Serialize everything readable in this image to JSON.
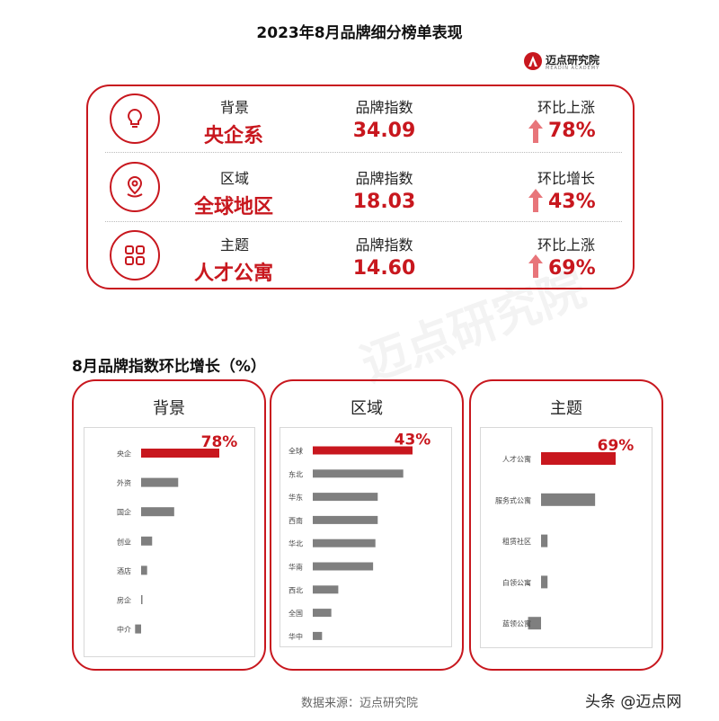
{
  "title": "2023年8月品牌细分榜单表现",
  "logo": {
    "text": "迈点研究院",
    "sub": "MEADIN ACADEMY"
  },
  "summary": [
    {
      "category": "背景",
      "name": "央企系",
      "index_label": "品牌指数",
      "index_value": "34.09",
      "change_label": "环比上涨",
      "change_value": "78%",
      "icon": "lightbulb-icon"
    },
    {
      "category": "区域",
      "name": "全球地区",
      "index_label": "品牌指数",
      "index_value": "18.03",
      "change_label": "环比增长",
      "change_value": "43%",
      "icon": "location-pin-icon"
    },
    {
      "category": "主题",
      "name": "人才公寓",
      "index_label": "品牌指数",
      "index_value": "14.60",
      "change_label": "环比上涨",
      "change_value": "69%",
      "icon": "grid-apps-icon"
    }
  ],
  "section_title": "8月品牌指数环比增长（%）",
  "watermark": "迈点研究院",
  "source": "数据来源：迈点研究院",
  "footer": "头条 @迈点网",
  "colors": {
    "accent": "#c8171e",
    "bar_gray": "#7f7f7f"
  },
  "chart_data": [
    {
      "type": "bar",
      "orientation": "horizontal",
      "title": "背景",
      "categories": [
        "央企",
        "外资",
        "国企",
        "创业",
        "酒店",
        "房企",
        "中介"
      ],
      "values": [
        78,
        37,
        33,
        11,
        6,
        1,
        -6
      ],
      "data_labels": [
        "78%",
        "",
        "",
        "",
        "",
        "",
        ""
      ],
      "xlim": [
        -8,
        100
      ],
      "highlight_index": 0
    },
    {
      "type": "bar",
      "orientation": "horizontal",
      "title": "区域",
      "categories": [
        "全球",
        "东北",
        "华东",
        "西南",
        "华北",
        "华南",
        "西北",
        "全国",
        "华中"
      ],
      "values": [
        43,
        39,
        28,
        28,
        27,
        26,
        11,
        8,
        4
      ],
      "data_labels": [
        "43%",
        "",
        "",
        "",
        "",
        "",
        "",
        "",
        ""
      ],
      "xlim": [
        0,
        55
      ],
      "highlight_index": 0
    },
    {
      "type": "bar",
      "orientation": "horizontal",
      "title": "主题",
      "categories": [
        "人才公寓",
        "服务式公寓",
        "租赁社区",
        "白领公寓",
        "蓝领公寓"
      ],
      "values": [
        69,
        50,
        6,
        6,
        -12
      ],
      "data_labels": [
        "69%",
        "",
        "",
        "",
        ""
      ],
      "xlim": [
        -15,
        100
      ],
      "highlight_index": 0
    }
  ]
}
